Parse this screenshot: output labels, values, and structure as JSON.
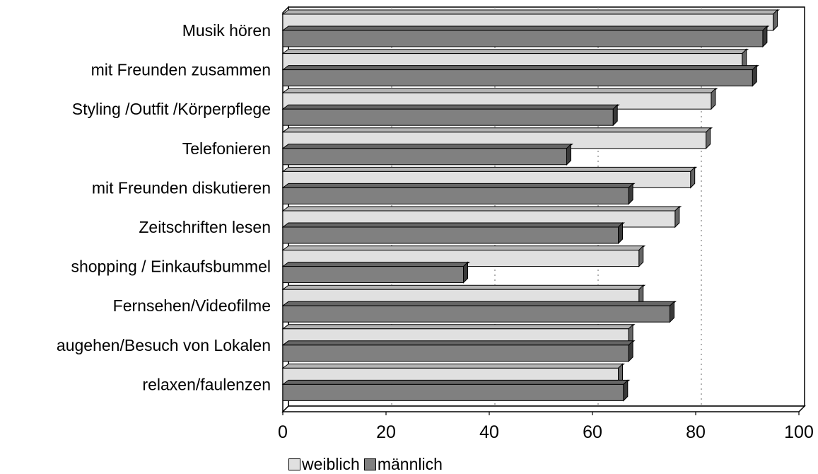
{
  "chart_data": {
    "type": "bar",
    "orientation": "horizontal",
    "categories": [
      "Musik hören",
      "mit Freunden zusammen",
      "Styling /Outfit /Körperpflege",
      "Telefonieren",
      "mit Freunden diskutieren",
      "Zeitschriften lesen ",
      "shopping / Einkaufsbummel",
      "Fernsehen/Videofilme",
      "augehen/Besuch von Lokalen",
      "relaxen/faulenzen"
    ],
    "series": [
      {
        "name": "weiblich",
        "color": "#e0e0e0",
        "values": [
          95,
          89,
          83,
          82,
          79,
          76,
          69,
          69,
          67,
          65
        ]
      },
      {
        "name": "männlich",
        "color": "#808080",
        "values": [
          93,
          91,
          64,
          55,
          67,
          65,
          35,
          75,
          67,
          66
        ]
      }
    ],
    "xlim": [
      0,
      100
    ],
    "x_ticks": [
      0,
      20,
      40,
      60,
      80,
      100
    ],
    "grid": "vertical dotted",
    "legend_position": "bottom",
    "style": "3d"
  }
}
